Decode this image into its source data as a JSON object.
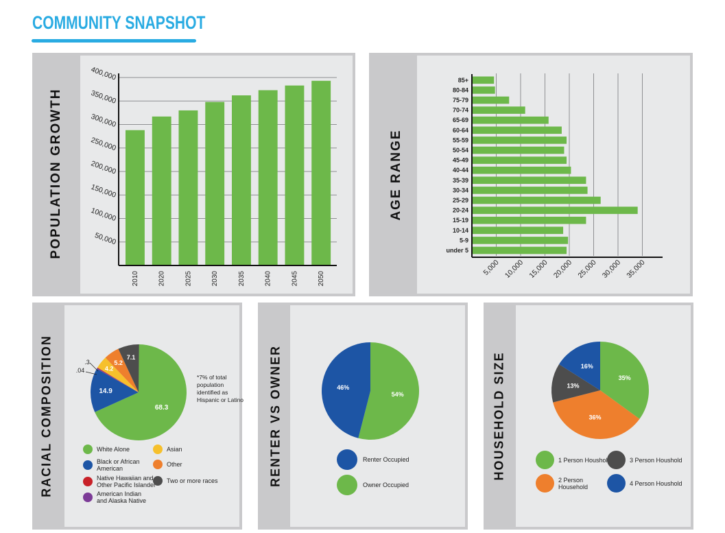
{
  "page_title": "COMMUNITY SNAPSHOT",
  "colors": {
    "accent": "#29abe2",
    "green": "#6db84a",
    "blue": "#1d55a5",
    "orange": "#ee7f2d",
    "gray": "#4d4d4d",
    "yellow": "#f6c02c",
    "red": "#c82128",
    "purple": "#7c3b97"
  },
  "panels": {
    "population": "POPULATION GROWTH",
    "age": "AGE RANGE",
    "race": "RACIAL COMPOSITION",
    "renter": "RENTER VS OWNER",
    "household": "HOUSEHOLD SIZE"
  },
  "chart_data": [
    {
      "type": "bar",
      "title": "POPULATION GROWTH",
      "categories": [
        "2010",
        "2020",
        "2025",
        "2030",
        "2035",
        "2040",
        "2045",
        "2050"
      ],
      "values": [
        288000,
        317000,
        330000,
        348000,
        362000,
        373000,
        383000,
        393000
      ],
      "ylim": [
        0,
        400000
      ],
      "yticks": [
        50000,
        100000,
        150000,
        200000,
        250000,
        300000,
        350000,
        400000
      ],
      "ytick_labels": [
        "50,000",
        "100,000",
        "150,000",
        "200,000",
        "250,000",
        "300,000",
        "350,000",
        "400,000"
      ]
    },
    {
      "type": "bar",
      "orientation": "horizontal",
      "title": "AGE RANGE",
      "categories": [
        "85+",
        "80-84",
        "75-79",
        "70-74",
        "65-69",
        "60-64",
        "55-59",
        "50-54",
        "45-49",
        "40-44",
        "35-39",
        "30-34",
        "25-29",
        "20-24",
        "15-19",
        "10-14",
        "5-9",
        "under 5"
      ],
      "values": [
        4400,
        4600,
        7500,
        10800,
        15600,
        18300,
        19300,
        18800,
        19300,
        20200,
        23300,
        23600,
        26300,
        33900,
        23300,
        18600,
        19600,
        19300
      ],
      "xlim": [
        0,
        40000
      ],
      "xticks": [
        5000,
        10000,
        15000,
        20000,
        25000,
        30000,
        35000
      ],
      "xtick_labels": [
        "5,000",
        "10,000",
        "15,000",
        "20,000",
        "25,000",
        "30,000",
        "35,000"
      ]
    },
    {
      "type": "pie",
      "title": "RACIAL COMPOSITION",
      "slices": [
        {
          "name": "White Alone",
          "value": 68.3,
          "label": "68.3",
          "color": "#6db84a"
        },
        {
          "name": "Black or African American",
          "value": 14.9,
          "label": "14.9",
          "color": "#1d55a5"
        },
        {
          "name": "American Indian and Alaska Native",
          "value": 0.3,
          "label": ".3",
          "color": "#7c3b97"
        },
        {
          "name": "Native Hawaiian and Other Pacific Islander",
          "value": 0.04,
          "label": ".04",
          "color": "#c82128"
        },
        {
          "name": "Asian",
          "value": 4.2,
          "label": "4.2",
          "color": "#f6c02c"
        },
        {
          "name": "Other",
          "value": 5.2,
          "label": "5.2",
          "color": "#ee7f2d"
        },
        {
          "name": "Two or more races",
          "value": 7.1,
          "label": "7.1",
          "color": "#4d4d4d"
        }
      ],
      "note": "*7% of total population identified as Hispanic or Latino"
    },
    {
      "type": "pie",
      "title": "RENTER VS OWNER",
      "slices": [
        {
          "name": "Owner Occupied",
          "value": 54,
          "label": "54%",
          "color": "#6db84a"
        },
        {
          "name": "Renter Occupied",
          "value": 46,
          "label": "46%",
          "color": "#1d55a5"
        }
      ]
    },
    {
      "type": "pie",
      "title": "HOUSEHOLD SIZE",
      "slices": [
        {
          "name": "1 Person Houshold",
          "value": 35,
          "label": "35%",
          "color": "#6db84a"
        },
        {
          "name": "2 Person Household",
          "value": 36,
          "label": "36%",
          "color": "#ee7f2d"
        },
        {
          "name": "3 Person Houshold",
          "value": 13,
          "label": "13%",
          "color": "#4d4d4d"
        },
        {
          "name": "4 Person Houshold",
          "value": 16,
          "label": "16%",
          "color": "#1d55a5"
        }
      ]
    }
  ],
  "legends": {
    "race": [
      {
        "label": "White Alone",
        "color": "#6db84a"
      },
      {
        "label": "Black or African American",
        "color": "#1d55a5"
      },
      {
        "label": "Native Hawaiian and Other Pacific Islander",
        "color": "#c82128"
      },
      {
        "label": "American Indian and Alaska Native",
        "color": "#7c3b97"
      },
      {
        "label": "Asian",
        "color": "#f6c02c"
      },
      {
        "label": "Other",
        "color": "#ee7f2d"
      },
      {
        "label": "Two or more races",
        "color": "#4d4d4d"
      }
    ],
    "renter": [
      {
        "label": "Renter Occupied",
        "color": "#1d55a5"
      },
      {
        "label": "Owner Occupied",
        "color": "#6db84a"
      }
    ],
    "household": [
      {
        "label": "1 Person Houshold",
        "color": "#6db84a"
      },
      {
        "label": "3 Person Houshold",
        "color": "#4d4d4d"
      },
      {
        "label": "2 Person Household",
        "color": "#ee7f2d"
      },
      {
        "label": "4 Person Houshold",
        "color": "#1d55a5"
      }
    ]
  }
}
